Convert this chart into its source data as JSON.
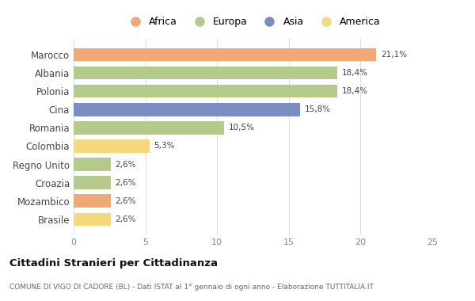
{
  "countries": [
    "Marocco",
    "Albania",
    "Polonia",
    "Cina",
    "Romania",
    "Colombia",
    "Regno Unito",
    "Croazia",
    "Mozambico",
    "Brasile"
  ],
  "values": [
    21.1,
    18.4,
    18.4,
    15.8,
    10.5,
    5.3,
    2.6,
    2.6,
    2.6,
    2.6
  ],
  "labels": [
    "21,1%",
    "18,4%",
    "18,4%",
    "15,8%",
    "10,5%",
    "5,3%",
    "2,6%",
    "2,6%",
    "2,6%",
    "2,6%"
  ],
  "colors": [
    "#F0A875",
    "#B5C98A",
    "#B5C98A",
    "#7A8EC4",
    "#B5C98A",
    "#F5D87A",
    "#B5C98A",
    "#B5C98A",
    "#F0A875",
    "#F5D87A"
  ],
  "continent_colors": {
    "Africa": "#F0A875",
    "Europa": "#B5C98A",
    "Asia": "#7A8EC4",
    "America": "#F5D87A"
  },
  "legend_labels": [
    "Africa",
    "Europa",
    "Asia",
    "America"
  ],
  "xlim": [
    0,
    25
  ],
  "xticks": [
    0,
    5,
    10,
    15,
    20,
    25
  ],
  "title": "Cittadini Stranieri per Cittadinanza",
  "subtitle": "COMUNE DI VIGO DI CADORE (BL) - Dati ISTAT al 1° gennaio di ogni anno - Elaborazione TUTTITALIA.IT",
  "bg_color": "#ffffff",
  "bar_height": 0.72
}
